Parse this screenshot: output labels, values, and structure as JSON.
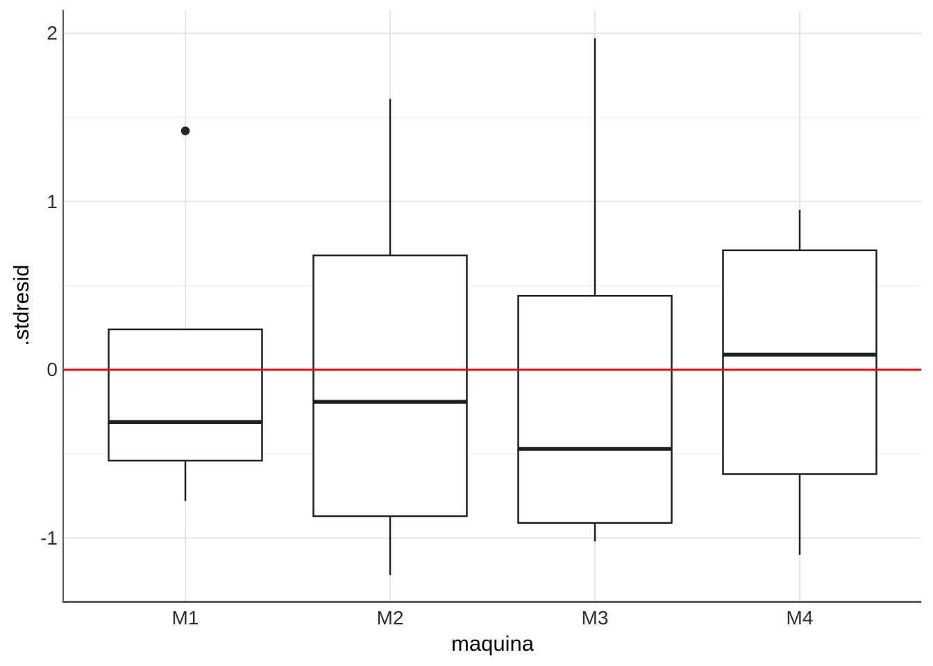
{
  "chart_data": {
    "type": "boxplot",
    "title": "",
    "xlabel": "maquina",
    "ylabel": ".stdresid",
    "categories": [
      "M1",
      "M2",
      "M3",
      "M4"
    ],
    "series": [
      {
        "name": "M1",
        "lower_whisker": -0.78,
        "q1": -0.54,
        "median": -0.31,
        "q3": 0.24,
        "upper_whisker": 0.24,
        "outliers": [
          1.42
        ]
      },
      {
        "name": "M2",
        "lower_whisker": -1.22,
        "q1": -0.87,
        "median": -0.19,
        "q3": 0.68,
        "upper_whisker": 1.61,
        "outliers": []
      },
      {
        "name": "M3",
        "lower_whisker": -1.02,
        "q1": -0.91,
        "median": -0.47,
        "q3": 0.44,
        "upper_whisker": 1.97,
        "outliers": []
      },
      {
        "name": "M4",
        "lower_whisker": -1.1,
        "q1": -0.62,
        "median": 0.09,
        "q3": 0.71,
        "upper_whisker": 0.95,
        "outliers": []
      }
    ],
    "reference_line": {
      "y": 0
    },
    "y_axis": {
      "tick_values": [
        2,
        1,
        0,
        -1
      ],
      "tick_labels": [
        "2",
        "1",
        "0",
        "-1"
      ],
      "minor_gridlines": [
        1.5,
        0.5,
        -0.5
      ],
      "ylim": [
        -1.373,
        2.136
      ]
    },
    "x_axis": {
      "tick_labels": [
        "M1",
        "M2",
        "M3",
        "M4"
      ]
    },
    "legend": "none",
    "grid": "horizontal major+minor, vertical major at categories"
  },
  "colors": {
    "box_stroke": "#1f1f1f",
    "median": "#1f1f1f",
    "outlier": "#262626",
    "reference_line": "#ff0000",
    "grid_major": "#e5e5e5",
    "grid_minor": "#f1f1f1",
    "axis_line": "#595959",
    "tick_text": "#303030",
    "title_text": "#000000",
    "background": "#ffffff",
    "box_fill": "#ffffff"
  }
}
